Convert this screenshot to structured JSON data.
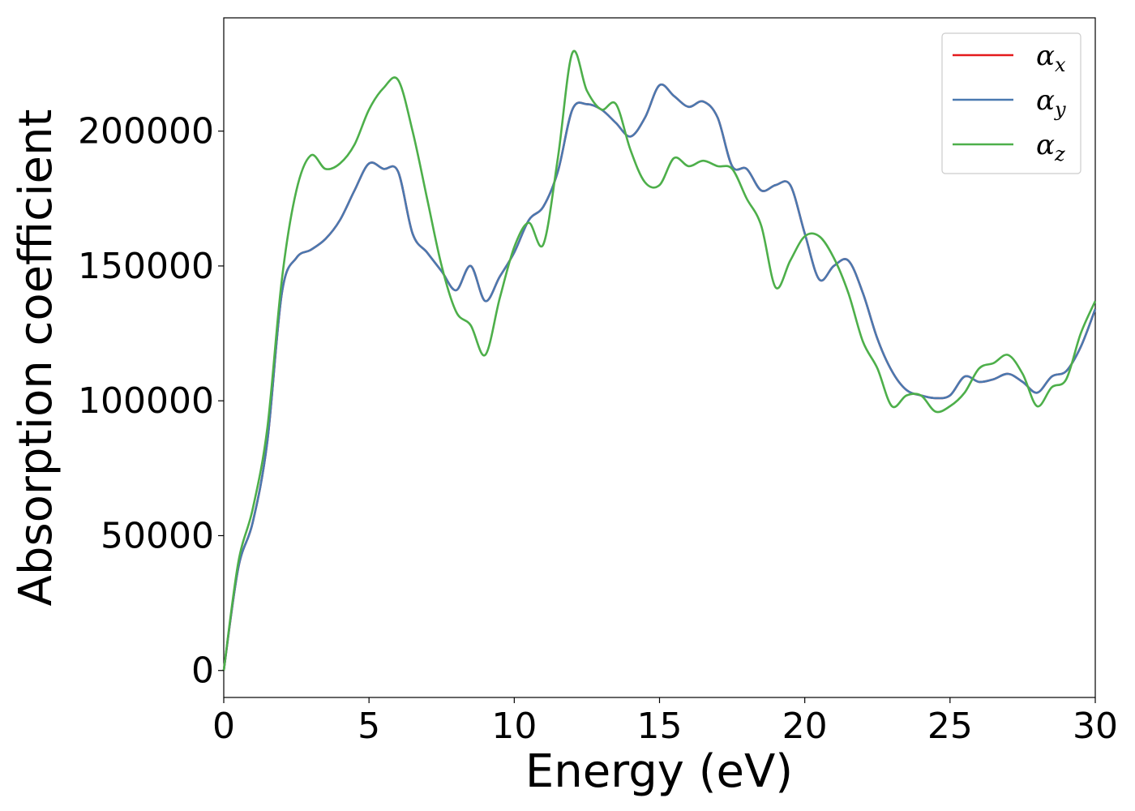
{
  "chart_data": {
    "type": "line",
    "xlabel": "Energy (eV)",
    "ylabel": "Absorption coefficient",
    "xlim": [
      0,
      30
    ],
    "ylim": [
      -10000,
      242000
    ],
    "xticks": [
      0,
      5,
      10,
      15,
      20,
      25,
      30
    ],
    "yticks": [
      0,
      50000,
      100000,
      150000,
      200000
    ],
    "grid": false,
    "legend_position": "top-right",
    "series": [
      {
        "name": "α_x",
        "symbol": "α",
        "subscript": "x",
        "color": "#e41a1c",
        "x": [
          0.0,
          0.5,
          1.0,
          1.5,
          2.0,
          2.5,
          3.0,
          3.5,
          4.0,
          4.5,
          5.0,
          5.5,
          6.0,
          6.5,
          7.0,
          7.5,
          8.0,
          8.5,
          9.0,
          9.5,
          10.0,
          10.5,
          11.0,
          11.5,
          12.0,
          12.5,
          13.0,
          13.5,
          14.0,
          14.5,
          15.0,
          15.5,
          16.0,
          16.5,
          17.0,
          17.5,
          18.0,
          18.5,
          19.0,
          19.5,
          20.0,
          20.5,
          21.0,
          21.5,
          22.0,
          22.5,
          23.0,
          23.5,
          24.0,
          24.5,
          25.0,
          25.5,
          26.0,
          26.5,
          27.0,
          27.5,
          28.0,
          28.5,
          29.0,
          29.5,
          30.0
        ],
        "y": [
          0,
          38000,
          55000,
          85000,
          140000,
          153000,
          156000,
          160000,
          167000,
          178000,
          188000,
          186000,
          185000,
          162000,
          155000,
          148000,
          141000,
          150000,
          137000,
          146000,
          155000,
          167000,
          172000,
          185000,
          208000,
          210000,
          208000,
          203000,
          198000,
          205000,
          217000,
          213000,
          209000,
          211000,
          205000,
          187000,
          186000,
          178000,
          180000,
          180000,
          162000,
          145000,
          150000,
          152000,
          140000,
          123000,
          111000,
          104000,
          102000,
          101000,
          102000,
          109000,
          107000,
          108000,
          110000,
          107000,
          103000,
          109000,
          111000,
          120000,
          134000
        ]
      },
      {
        "name": "α_y",
        "symbol": "α",
        "subscript": "y",
        "color": "#4a79b0",
        "x": [
          0.0,
          0.5,
          1.0,
          1.5,
          2.0,
          2.5,
          3.0,
          3.5,
          4.0,
          4.5,
          5.0,
          5.5,
          6.0,
          6.5,
          7.0,
          7.5,
          8.0,
          8.5,
          9.0,
          9.5,
          10.0,
          10.5,
          11.0,
          11.5,
          12.0,
          12.5,
          13.0,
          13.5,
          14.0,
          14.5,
          15.0,
          15.5,
          16.0,
          16.5,
          17.0,
          17.5,
          18.0,
          18.5,
          19.0,
          19.5,
          20.0,
          20.5,
          21.0,
          21.5,
          22.0,
          22.5,
          23.0,
          23.5,
          24.0,
          24.5,
          25.0,
          25.5,
          26.0,
          26.5,
          27.0,
          27.5,
          28.0,
          28.5,
          29.0,
          29.5,
          30.0
        ],
        "y": [
          0,
          38000,
          55000,
          85000,
          140000,
          153000,
          156000,
          160000,
          167000,
          178000,
          188000,
          186000,
          185000,
          162000,
          155000,
          148000,
          141000,
          150000,
          137000,
          146000,
          155000,
          167000,
          172000,
          185000,
          208000,
          210000,
          208000,
          203000,
          198000,
          205000,
          217000,
          213000,
          209000,
          211000,
          205000,
          187000,
          186000,
          178000,
          180000,
          180000,
          162000,
          145000,
          150000,
          152000,
          140000,
          123000,
          111000,
          104000,
          102000,
          101000,
          102000,
          109000,
          107000,
          108000,
          110000,
          107000,
          103000,
          109000,
          111000,
          120000,
          134000
        ]
      },
      {
        "name": "α_z",
        "symbol": "α",
        "subscript": "z",
        "color": "#4daf4a",
        "x": [
          0.0,
          0.5,
          1.0,
          1.5,
          2.0,
          2.5,
          3.0,
          3.5,
          4.0,
          4.5,
          5.0,
          5.5,
          6.0,
          6.5,
          7.0,
          7.5,
          8.0,
          8.5,
          9.0,
          9.5,
          10.0,
          10.5,
          11.0,
          11.5,
          12.0,
          12.5,
          13.0,
          13.5,
          14.0,
          14.5,
          15.0,
          15.5,
          16.0,
          16.5,
          17.0,
          17.5,
          18.0,
          18.5,
          19.0,
          19.5,
          20.0,
          20.5,
          21.0,
          21.5,
          22.0,
          22.5,
          23.0,
          23.5,
          24.0,
          24.5,
          25.0,
          25.5,
          26.0,
          26.5,
          27.0,
          27.5,
          28.0,
          28.5,
          29.0,
          29.5,
          30.0
        ],
        "y": [
          0,
          40000,
          60000,
          90000,
          145000,
          178000,
          191000,
          186000,
          188000,
          195000,
          208000,
          216000,
          219000,
          200000,
          175000,
          150000,
          133000,
          128000,
          117000,
          138000,
          157000,
          166000,
          158000,
          190000,
          229000,
          215000,
          208000,
          210000,
          193000,
          181000,
          180000,
          190000,
          187000,
          189000,
          187000,
          186000,
          175000,
          165000,
          142000,
          152000,
          161000,
          161000,
          153000,
          140000,
          122000,
          112000,
          98000,
          102000,
          102000,
          96000,
          98000,
          103000,
          112000,
          114000,
          117000,
          110000,
          98000,
          105000,
          108000,
          125000,
          137000
        ]
      }
    ]
  }
}
